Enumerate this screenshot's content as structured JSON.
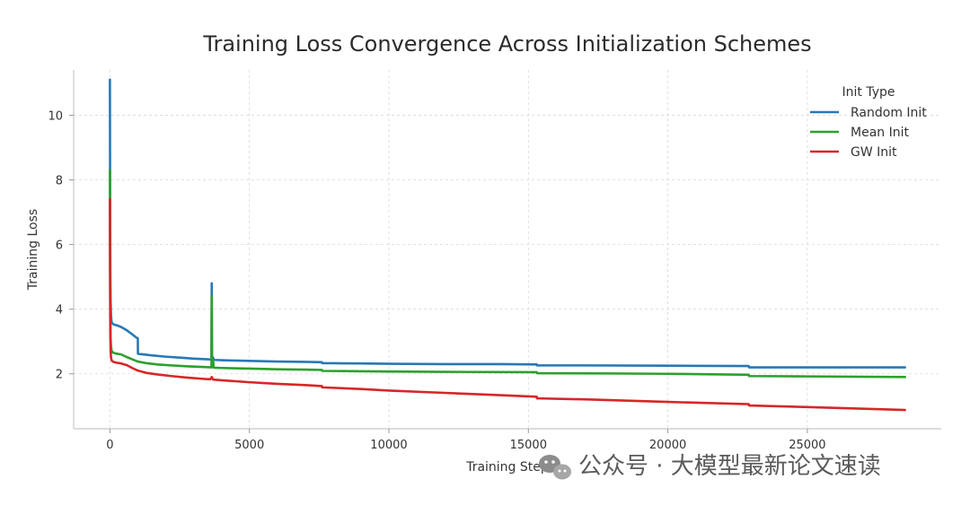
{
  "chart_data": {
    "type": "line",
    "title": "Training Loss Convergence Across Initialization Schemes",
    "xlabel": "Training Step",
    "ylabel": "Training Loss",
    "xlim": [
      -1300,
      29800
    ],
    "ylim": [
      0.3,
      11.4
    ],
    "xticks": [
      0,
      5000,
      10000,
      15000,
      20000,
      25000
    ],
    "yticks": [
      2,
      4,
      6,
      8,
      10
    ],
    "grid": true,
    "legend": {
      "title": "Init Type",
      "position": "top-right"
    },
    "series": [
      {
        "name": "Random Init",
        "color": "#2878b5",
        "x": [
          0,
          3,
          8,
          15,
          25,
          40,
          60,
          100,
          150,
          250,
          400,
          600,
          800,
          950,
          1000,
          1005,
          1500,
          2000,
          2500,
          3000,
          3500,
          3640,
          3650,
          3660,
          3670,
          3700,
          3720,
          3740,
          4000,
          5000,
          6000,
          7000,
          7600,
          7610,
          9000,
          10000,
          12000,
          14000,
          15300,
          15310,
          17000,
          20000,
          22900,
          22910,
          25000,
          28500
        ],
        "y": [
          11.1,
          9.5,
          7.0,
          5.2,
          4.3,
          3.8,
          3.6,
          3.55,
          3.52,
          3.5,
          3.45,
          3.35,
          3.22,
          3.12,
          3.1,
          2.62,
          2.57,
          2.53,
          2.5,
          2.47,
          2.45,
          2.44,
          4.8,
          2.6,
          2.44,
          2.5,
          2.44,
          2.43,
          2.42,
          2.4,
          2.38,
          2.37,
          2.36,
          2.33,
          2.32,
          2.31,
          2.3,
          2.3,
          2.29,
          2.26,
          2.26,
          2.25,
          2.24,
          2.2,
          2.2,
          2.2
        ]
      },
      {
        "name": "Mean Init",
        "color": "#2ca02c",
        "x": [
          0,
          3,
          8,
          15,
          25,
          40,
          60,
          100,
          200,
          400,
          600,
          800,
          1000,
          1300,
          1700,
          2200,
          2800,
          3400,
          3640,
          3650,
          3660,
          3670,
          3700,
          3720,
          3740,
          4000,
          5000,
          6000,
          7000,
          7600,
          7610,
          10000,
          12000,
          15300,
          15310,
          18000,
          20000,
          22900,
          22910,
          25000,
          28500
        ],
        "y": [
          8.3,
          7.0,
          5.2,
          3.8,
          3.1,
          2.85,
          2.72,
          2.66,
          2.63,
          2.6,
          2.52,
          2.45,
          2.38,
          2.33,
          2.29,
          2.26,
          2.23,
          2.21,
          2.2,
          4.4,
          2.3,
          2.2,
          2.4,
          2.2,
          2.19,
          2.18,
          2.16,
          2.14,
          2.13,
          2.12,
          2.09,
          2.07,
          2.06,
          2.05,
          2.02,
          2.01,
          2.0,
          1.97,
          1.93,
          1.92,
          1.9
        ]
      },
      {
        "name": "GW Init",
        "color": "#d62728",
        "x": [
          0,
          3,
          8,
          15,
          25,
          40,
          60,
          100,
          200,
          400,
          600,
          800,
          1000,
          1300,
          1700,
          2200,
          2800,
          3400,
          3600,
          3650,
          3700,
          4000,
          5000,
          6000,
          7000,
          7600,
          7610,
          9000,
          10000,
          12000,
          14000,
          15300,
          15310,
          17000,
          20000,
          22900,
          22910,
          25000,
          28500
        ],
        "y": [
          7.4,
          5.8,
          4.2,
          3.2,
          2.7,
          2.5,
          2.42,
          2.38,
          2.35,
          2.32,
          2.27,
          2.18,
          2.1,
          2.03,
          1.98,
          1.93,
          1.88,
          1.84,
          1.83,
          1.9,
          1.82,
          1.8,
          1.74,
          1.69,
          1.65,
          1.62,
          1.58,
          1.53,
          1.48,
          1.41,
          1.34,
          1.29,
          1.24,
          1.21,
          1.13,
          1.06,
          1.02,
          0.97,
          0.88
        ]
      }
    ]
  },
  "watermark": {
    "text": "公众号 · 大模型最新论文速读"
  }
}
